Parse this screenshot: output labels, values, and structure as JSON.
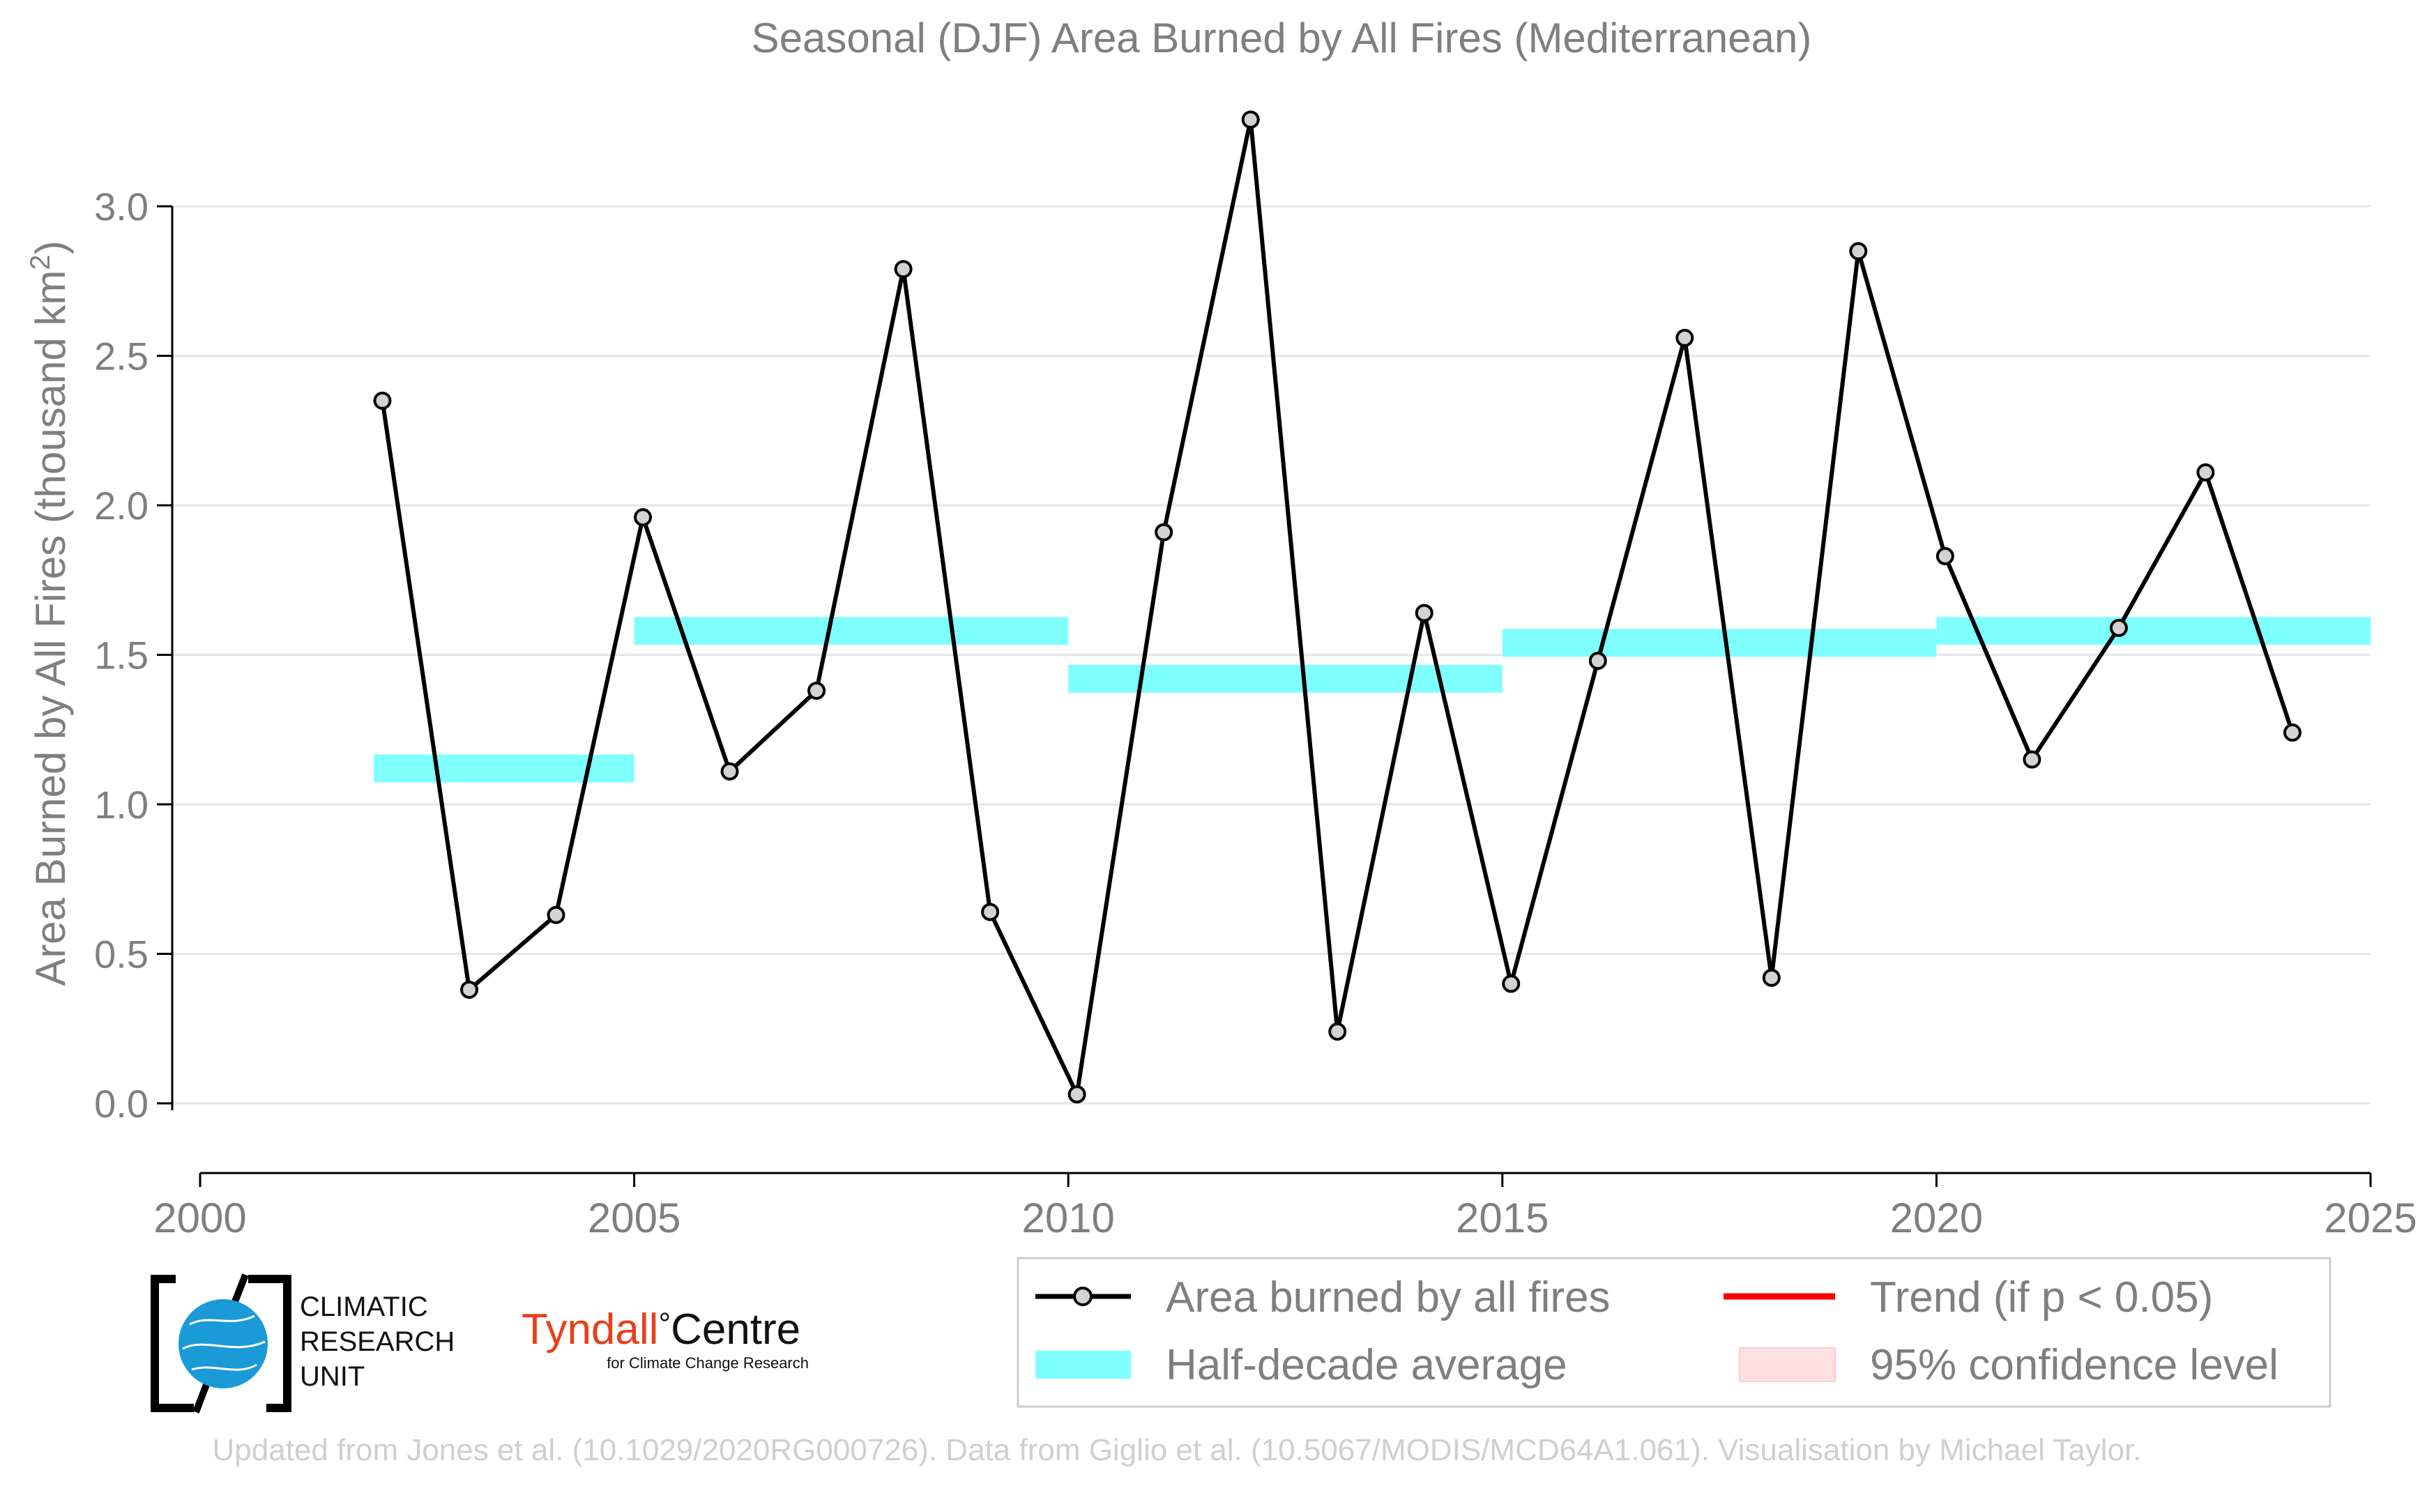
{
  "chart_data": {
    "type": "line",
    "title": "Seasonal (DJF) Area Burned by All Fires (Mediterranean)",
    "ylabel": "Area Burned by All Fires (thousand km",
    "ylabel_sup": "2",
    "ylabel_close": ")",
    "xlim": [
      2000,
      2025
    ],
    "ylim": [
      -0.15,
      3.35
    ],
    "x_ticks": [
      "2000",
      "2005",
      "2010",
      "2015",
      "2020",
      "2025"
    ],
    "y_ticks": [
      "0.0",
      "0.5",
      "1.0",
      "1.5",
      "2.0",
      "2.5",
      "3.0"
    ],
    "grid": "horizontal",
    "series": [
      {
        "name": "Area burned by all fires",
        "x": [
          2002.1,
          2003.1,
          2004.1,
          2005.1,
          2006.1,
          2007.1,
          2008.1,
          2009.1,
          2010.1,
          2011.1,
          2012.1,
          2013.1,
          2014.1,
          2015.1,
          2016.1,
          2017.1,
          2018.1,
          2019.1,
          2020.1,
          2021.1,
          2022.1,
          2023.1,
          2024.1
        ],
        "y": [
          2.35,
          0.38,
          0.63,
          1.96,
          1.11,
          1.38,
          2.79,
          0.64,
          0.03,
          1.91,
          3.29,
          0.24,
          1.64,
          0.4,
          1.48,
          2.56,
          0.42,
          2.85,
          1.83,
          1.15,
          1.59,
          2.11,
          1.24
        ]
      }
    ],
    "half_decade_average": [
      {
        "x0": 2002,
        "x1": 2005,
        "y": 1.12
      },
      {
        "x0": 2005,
        "x1": 2010,
        "y": 1.58
      },
      {
        "x0": 2010,
        "x1": 2015,
        "y": 1.42
      },
      {
        "x0": 2015,
        "x1": 2020,
        "y": 1.54
      },
      {
        "x0": 2020,
        "x1": 2025,
        "y": 1.58
      }
    ],
    "legend": {
      "placement": "bottom-right",
      "entries": [
        "Area burned by all fires",
        "Trend (if p < 0.05)",
        "Half-decade average",
        "95% confidence level"
      ]
    },
    "colors": {
      "series_line": "#000000",
      "marker_fill": "#d3d3d3",
      "half_decade": "#80ffff",
      "trend": "#ff0000",
      "confidence": "#ffe0e0"
    }
  },
  "logos": {
    "cru_text": [
      "CLIMATIC",
      "RESEARCH",
      "UNIT"
    ],
    "tyndall_name": "Tyndall",
    "tyndall_degree": "°",
    "tyndall_centre": "Centre",
    "tyndall_sub": "for Climate Change Research"
  },
  "credit": "Updated from Jones et al. (10.1029/2020RG000726). Data from Giglio et al. (10.5067/MODIS/MCD64A1.061). Visualisation by Michael Taylor."
}
